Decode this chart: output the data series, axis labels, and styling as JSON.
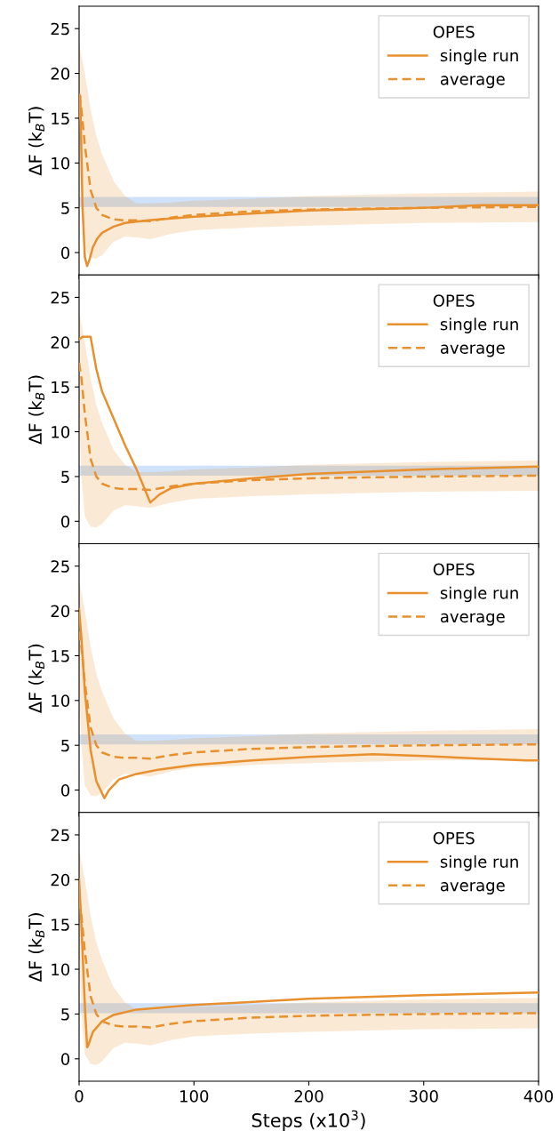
{
  "chart_data": [
    {
      "type": "line",
      "ylabel": "ΔF (k$_{B}$T)",
      "legend_title": "OPES",
      "legend": "top right",
      "xlim": [
        0,
        400
      ],
      "xticks": [
        0,
        100,
        200,
        300,
        400
      ],
      "ylim": [
        -2.5,
        27.5
      ],
      "yticks": [
        0,
        5,
        10,
        15,
        20,
        25
      ],
      "tick_labels": "y",
      "bands": [
        {
          "axis": "y",
          "from": 5.1,
          "to": 6.2,
          "color": "#a9c9f5"
        }
      ],
      "series": [
        {
          "name": "single run",
          "color": "#e8902e",
          "line_style": "solid",
          "x": [
            0,
            1,
            3,
            5,
            7,
            9,
            12,
            16,
            20,
            30,
            40,
            60,
            100,
            200,
            300,
            350,
            400
          ],
          "values": [
            15,
            17.5,
            5,
            -0.5,
            -1.5,
            -0.8,
            0.6,
            1.6,
            2.2,
            2.9,
            3.3,
            3.6,
            4.0,
            4.7,
            5.0,
            5.3,
            5.3
          ]
        },
        {
          "name": "average",
          "color": "#e8902e",
          "line_style": "dashed",
          "x": [
            0,
            2,
            5,
            10,
            15,
            20,
            30,
            40,
            50,
            62,
            80,
            100,
            150,
            200,
            300,
            400
          ],
          "values": [
            17.7,
            16,
            12,
            7,
            5,
            4.2,
            3.7,
            3.6,
            3.6,
            3.5,
            3.9,
            4.2,
            4.6,
            4.8,
            5.0,
            5.1
          ],
          "lower": [
            12,
            5,
            0.5,
            -0.6,
            -0.7,
            -0.3,
            1.2,
            1.8,
            1.7,
            1.5,
            2.1,
            2.5,
            2.8,
            3.0,
            3.3,
            3.4
          ],
          "upper": [
            23.4,
            22,
            20,
            16,
            13,
            11,
            8,
            6.3,
            5.5,
            5.5,
            5.6,
            5.8,
            6.0,
            6.3,
            6.6,
            6.8
          ]
        }
      ]
    },
    {
      "type": "line",
      "ylabel": "ΔF (k$_{B}$T)",
      "legend_title": "OPES",
      "legend": "top right",
      "xlim": [
        0,
        400
      ],
      "xticks": [
        0,
        100,
        200,
        300,
        400
      ],
      "ylim": [
        -2.5,
        27.5
      ],
      "yticks": [
        0,
        5,
        10,
        15,
        20,
        25
      ],
      "tick_labels": "y",
      "bands": [
        {
          "axis": "y",
          "from": 5.1,
          "to": 6.2,
          "color": "#a9c9f5"
        }
      ],
      "series": [
        {
          "name": "single run",
          "color": "#e8902e",
          "line_style": "solid",
          "x": [
            0,
            3,
            10,
            15,
            20,
            30,
            40,
            50,
            62,
            70,
            80,
            100,
            150,
            200,
            300,
            400
          ],
          "values": [
            20.3,
            20.6,
            20.6,
            17,
            14.5,
            11.5,
            8.5,
            5.8,
            2.1,
            3,
            3.7,
            4.2,
            4.8,
            5.3,
            5.8,
            6.1
          ]
        },
        {
          "name": "average",
          "color": "#e8902e",
          "line_style": "dashed",
          "x": [
            0,
            2,
            5,
            10,
            15,
            20,
            30,
            40,
            50,
            62,
            80,
            100,
            150,
            200,
            300,
            400
          ],
          "values": [
            17.7,
            16,
            12,
            7,
            5,
            4.2,
            3.7,
            3.6,
            3.6,
            3.5,
            3.9,
            4.2,
            4.6,
            4.8,
            5.0,
            5.1
          ],
          "lower": [
            12,
            5,
            0.5,
            -0.6,
            -0.7,
            -0.3,
            1.2,
            1.8,
            1.7,
            1.5,
            2.1,
            2.5,
            2.8,
            3.0,
            3.3,
            3.4
          ],
          "upper": [
            23.4,
            22,
            20,
            16,
            13,
            11,
            8,
            6.3,
            5.5,
            5.5,
            5.6,
            5.8,
            6.0,
            6.3,
            6.6,
            6.8
          ]
        }
      ]
    },
    {
      "type": "line",
      "ylabel": "ΔF (k$_{B}$T)",
      "legend_title": "OPES",
      "legend": "top right",
      "xlim": [
        0,
        400
      ],
      "xticks": [
        0,
        100,
        200,
        300,
        400
      ],
      "ylim": [
        -2.5,
        27.5
      ],
      "yticks": [
        0,
        5,
        10,
        15,
        20,
        25
      ],
      "tick_labels": "y",
      "bands": [
        {
          "axis": "y",
          "from": 5.1,
          "to": 6.2,
          "color": "#a9c9f5"
        }
      ],
      "series": [
        {
          "name": "single run",
          "color": "#e8902e",
          "line_style": "solid",
          "x": [
            0,
            2,
            5,
            10,
            15,
            22,
            26,
            35,
            50,
            70,
            100,
            150,
            200,
            256,
            300,
            350,
            390,
            400
          ],
          "values": [
            20.2,
            17,
            11,
            4.5,
            1,
            -0.9,
            0,
            1.2,
            1.8,
            2.3,
            2.8,
            3.3,
            3.7,
            4.0,
            3.8,
            3.5,
            3.3,
            3.3
          ]
        },
        {
          "name": "average",
          "color": "#e8902e",
          "line_style": "dashed",
          "x": [
            0,
            2,
            5,
            10,
            15,
            20,
            30,
            40,
            50,
            62,
            80,
            100,
            150,
            200,
            300,
            400
          ],
          "values": [
            17.7,
            16,
            12,
            7,
            5,
            4.2,
            3.7,
            3.6,
            3.6,
            3.5,
            3.9,
            4.2,
            4.6,
            4.8,
            5.0,
            5.1
          ],
          "lower": [
            12,
            5,
            0.5,
            -0.6,
            -0.7,
            -0.3,
            1.2,
            1.8,
            1.7,
            1.5,
            2.1,
            2.5,
            2.8,
            3.0,
            3.3,
            3.4
          ],
          "upper": [
            23.4,
            22,
            20,
            16,
            13,
            11,
            8,
            6.3,
            5.5,
            5.5,
            5.6,
            5.8,
            6.0,
            6.3,
            6.6,
            6.8
          ]
        }
      ]
    },
    {
      "type": "line",
      "ylabel": "ΔF (k$_{B}$T)",
      "xlabel": "Steps (x10$^{3}$)",
      "legend_title": "OPES",
      "legend": "top right",
      "xlim": [
        0,
        400
      ],
      "xticks": [
        0,
        100,
        200,
        300,
        400
      ],
      "ylim": [
        -2.5,
        27.5
      ],
      "yticks": [
        0,
        5,
        10,
        15,
        20,
        25
      ],
      "bands": [
        {
          "axis": "y",
          "from": 5.1,
          "to": 6.2,
          "color": "#a9c9f5"
        }
      ],
      "series": [
        {
          "name": "single run",
          "color": "#e8902e",
          "line_style": "solid",
          "x": [
            0,
            2,
            5,
            7,
            8,
            12,
            20,
            30,
            50,
            100,
            200,
            300,
            400
          ],
          "values": [
            20,
            15,
            6,
            1.3,
            1.5,
            3,
            4.2,
            4.9,
            5.5,
            6.0,
            6.7,
            7.1,
            7.4
          ]
        },
        {
          "name": "average",
          "color": "#e8902e",
          "line_style": "dashed",
          "x": [
            0,
            2,
            5,
            10,
            15,
            20,
            30,
            40,
            50,
            62,
            80,
            100,
            150,
            200,
            300,
            400
          ],
          "values": [
            17.7,
            16,
            12,
            7,
            5,
            4.2,
            3.7,
            3.6,
            3.6,
            3.5,
            3.9,
            4.2,
            4.6,
            4.8,
            5.0,
            5.1
          ],
          "lower": [
            12,
            5,
            0.5,
            -0.6,
            -0.7,
            -0.3,
            1.2,
            1.8,
            1.7,
            1.5,
            2.1,
            2.5,
            2.8,
            3.0,
            3.3,
            3.4
          ],
          "upper": [
            23.4,
            22,
            20,
            16,
            13,
            11,
            8,
            6.3,
            5.5,
            5.5,
            5.6,
            5.8,
            6.0,
            6.3,
            6.6,
            6.8
          ]
        }
      ]
    }
  ]
}
